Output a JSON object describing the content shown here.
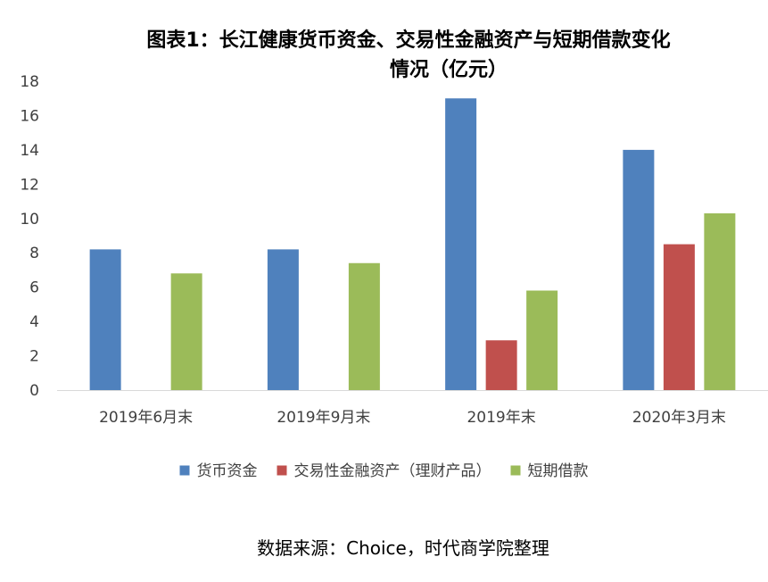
{
  "chart_data": {
    "type": "bar",
    "title_lines": [
      "图表1：长江健康货币资金、交易性金融资产与短期借款变化",
      "情况（亿元）"
    ],
    "categories": [
      "2019年6月末",
      "2019年9月末",
      "2019年末",
      "2020年3月末"
    ],
    "series": [
      {
        "name": "货币资金",
        "color": "#4F81BD",
        "values": [
          8.2,
          8.2,
          17.0,
          14.0
        ]
      },
      {
        "name": "交易性金融资产（理财产品）",
        "color": "#C0504D",
        "values": [
          null,
          null,
          2.9,
          8.5
        ]
      },
      {
        "name": "短期借款",
        "color": "#9BBB59",
        "values": [
          6.8,
          7.4,
          5.8,
          10.3
        ]
      }
    ],
    "ylim": [
      0,
      18
    ],
    "yticks": [
      0,
      2,
      4,
      6,
      8,
      10,
      12,
      14,
      16,
      18
    ],
    "grid": false,
    "legend_position": "bottom",
    "source": "数据来源：Choice，时代商学院整理"
  }
}
